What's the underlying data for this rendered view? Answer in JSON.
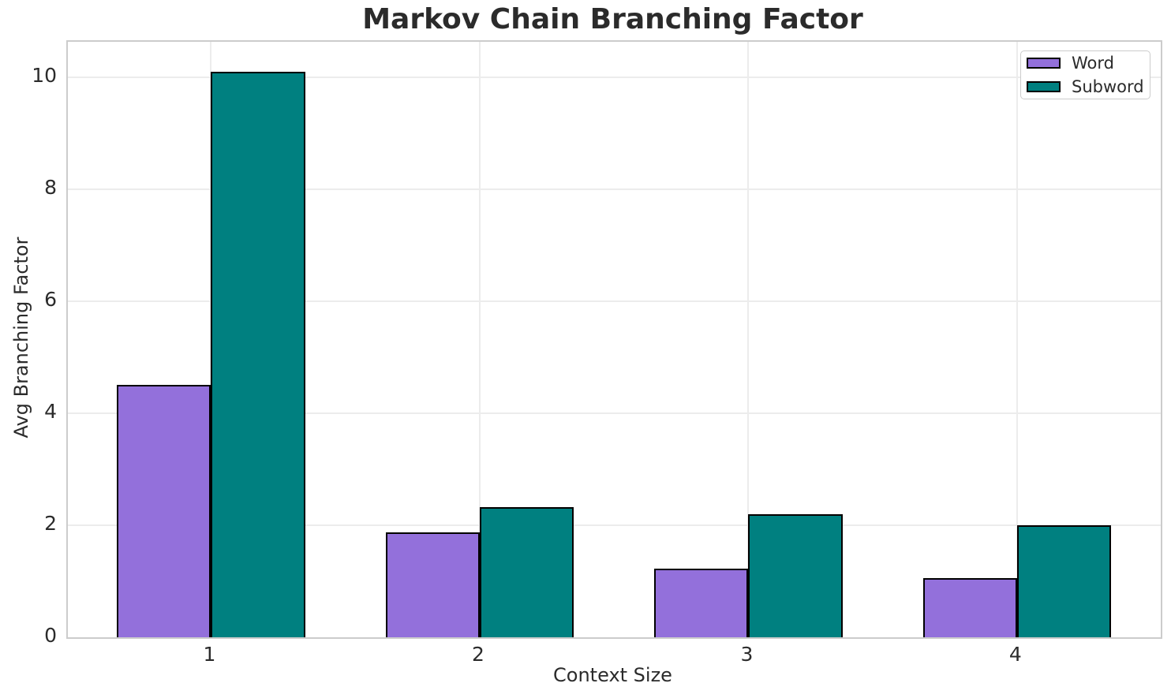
{
  "title": "Markov Chain Branching Factor",
  "chart_data": {
    "type": "bar",
    "title": "Markov Chain Branching Factor",
    "xlabel": "Context Size",
    "ylabel": "Avg Branching Factor",
    "categories": [
      "1",
      "2",
      "3",
      "4"
    ],
    "series": [
      {
        "name": "Word",
        "color": "#9370DB",
        "values": [
          4.5,
          1.87,
          1.22,
          1.06
        ]
      },
      {
        "name": "Subword",
        "color": "#008080",
        "values": [
          10.1,
          2.33,
          2.2,
          2.0
        ]
      }
    ],
    "bar_edge_color": "#000000",
    "bar_width_data": 0.35,
    "xlim": [
      -0.533,
      3.535
    ],
    "ylim": [
      0,
      10.63
    ],
    "yticks": [
      0,
      2,
      4,
      6,
      8,
      10
    ],
    "grid": true,
    "grid_color": "#ececec",
    "legend_position": "upper right",
    "legend_items": [
      "Word",
      "Subword"
    ]
  }
}
